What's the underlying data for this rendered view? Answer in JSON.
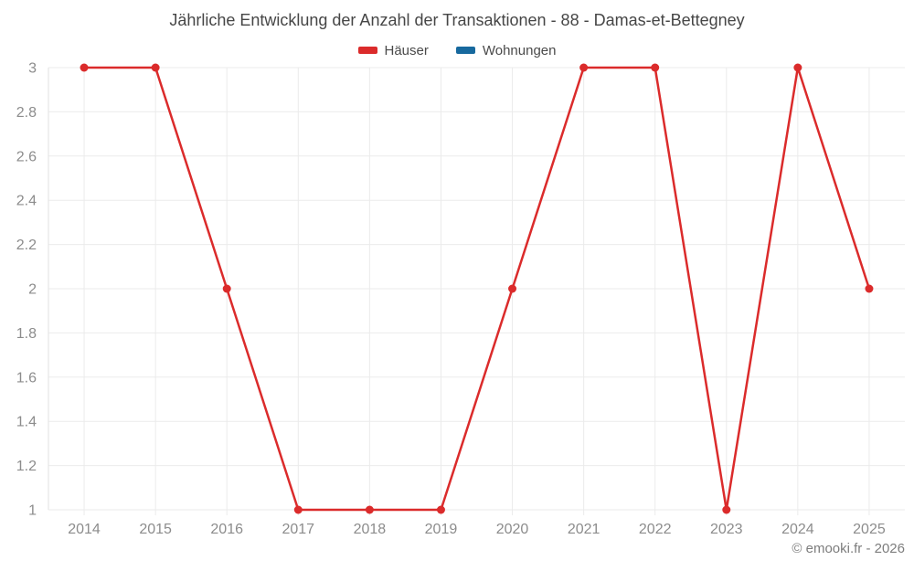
{
  "page": {
    "background": "#ffffff"
  },
  "header": {
    "title": "Jährliche Entwicklung der Anzahl der Transaktionen - 88 - Damas-et-Bettegney"
  },
  "legend": {
    "items": [
      {
        "label": "Häuser",
        "color": "#db2b2b"
      },
      {
        "label": "Wohnungen",
        "color": "#17699e"
      }
    ]
  },
  "watermark": {
    "text": "© emooki.fr - 2026"
  },
  "chart_data": {
    "type": "line",
    "title": "Jährliche Entwicklung der Anzahl der Transaktionen - 88 - Damas-et-Bettegney",
    "categories": [
      "2014",
      "2015",
      "2016",
      "2017",
      "2018",
      "2019",
      "2020",
      "2021",
      "2022",
      "2023",
      "2024",
      "2025"
    ],
    "series": [
      {
        "name": "Häuser",
        "color": "#db2b2b",
        "values": [
          3,
          3,
          2,
          1,
          1,
          1,
          2,
          3,
          3,
          1,
          3,
          2
        ]
      },
      {
        "name": "Wohnungen",
        "color": "#17699e",
        "values": []
      }
    ],
    "xlabel": "",
    "ylabel": "",
    "ylim": [
      1,
      3
    ],
    "yticks": [
      "1",
      "1.2",
      "1.4",
      "1.6",
      "1.8",
      "2",
      "2.2",
      "2.4",
      "2.6",
      "2.8",
      "3"
    ],
    "grid": true,
    "legend_position": "top",
    "styles": {
      "grid_color": "#ebebeb",
      "axis_line_color": "#e2e2e2",
      "tick_label_color": "#8c8c8c",
      "tick_label_size": 16,
      "line_width": 2.5,
      "marker_radius": 4.5
    }
  }
}
